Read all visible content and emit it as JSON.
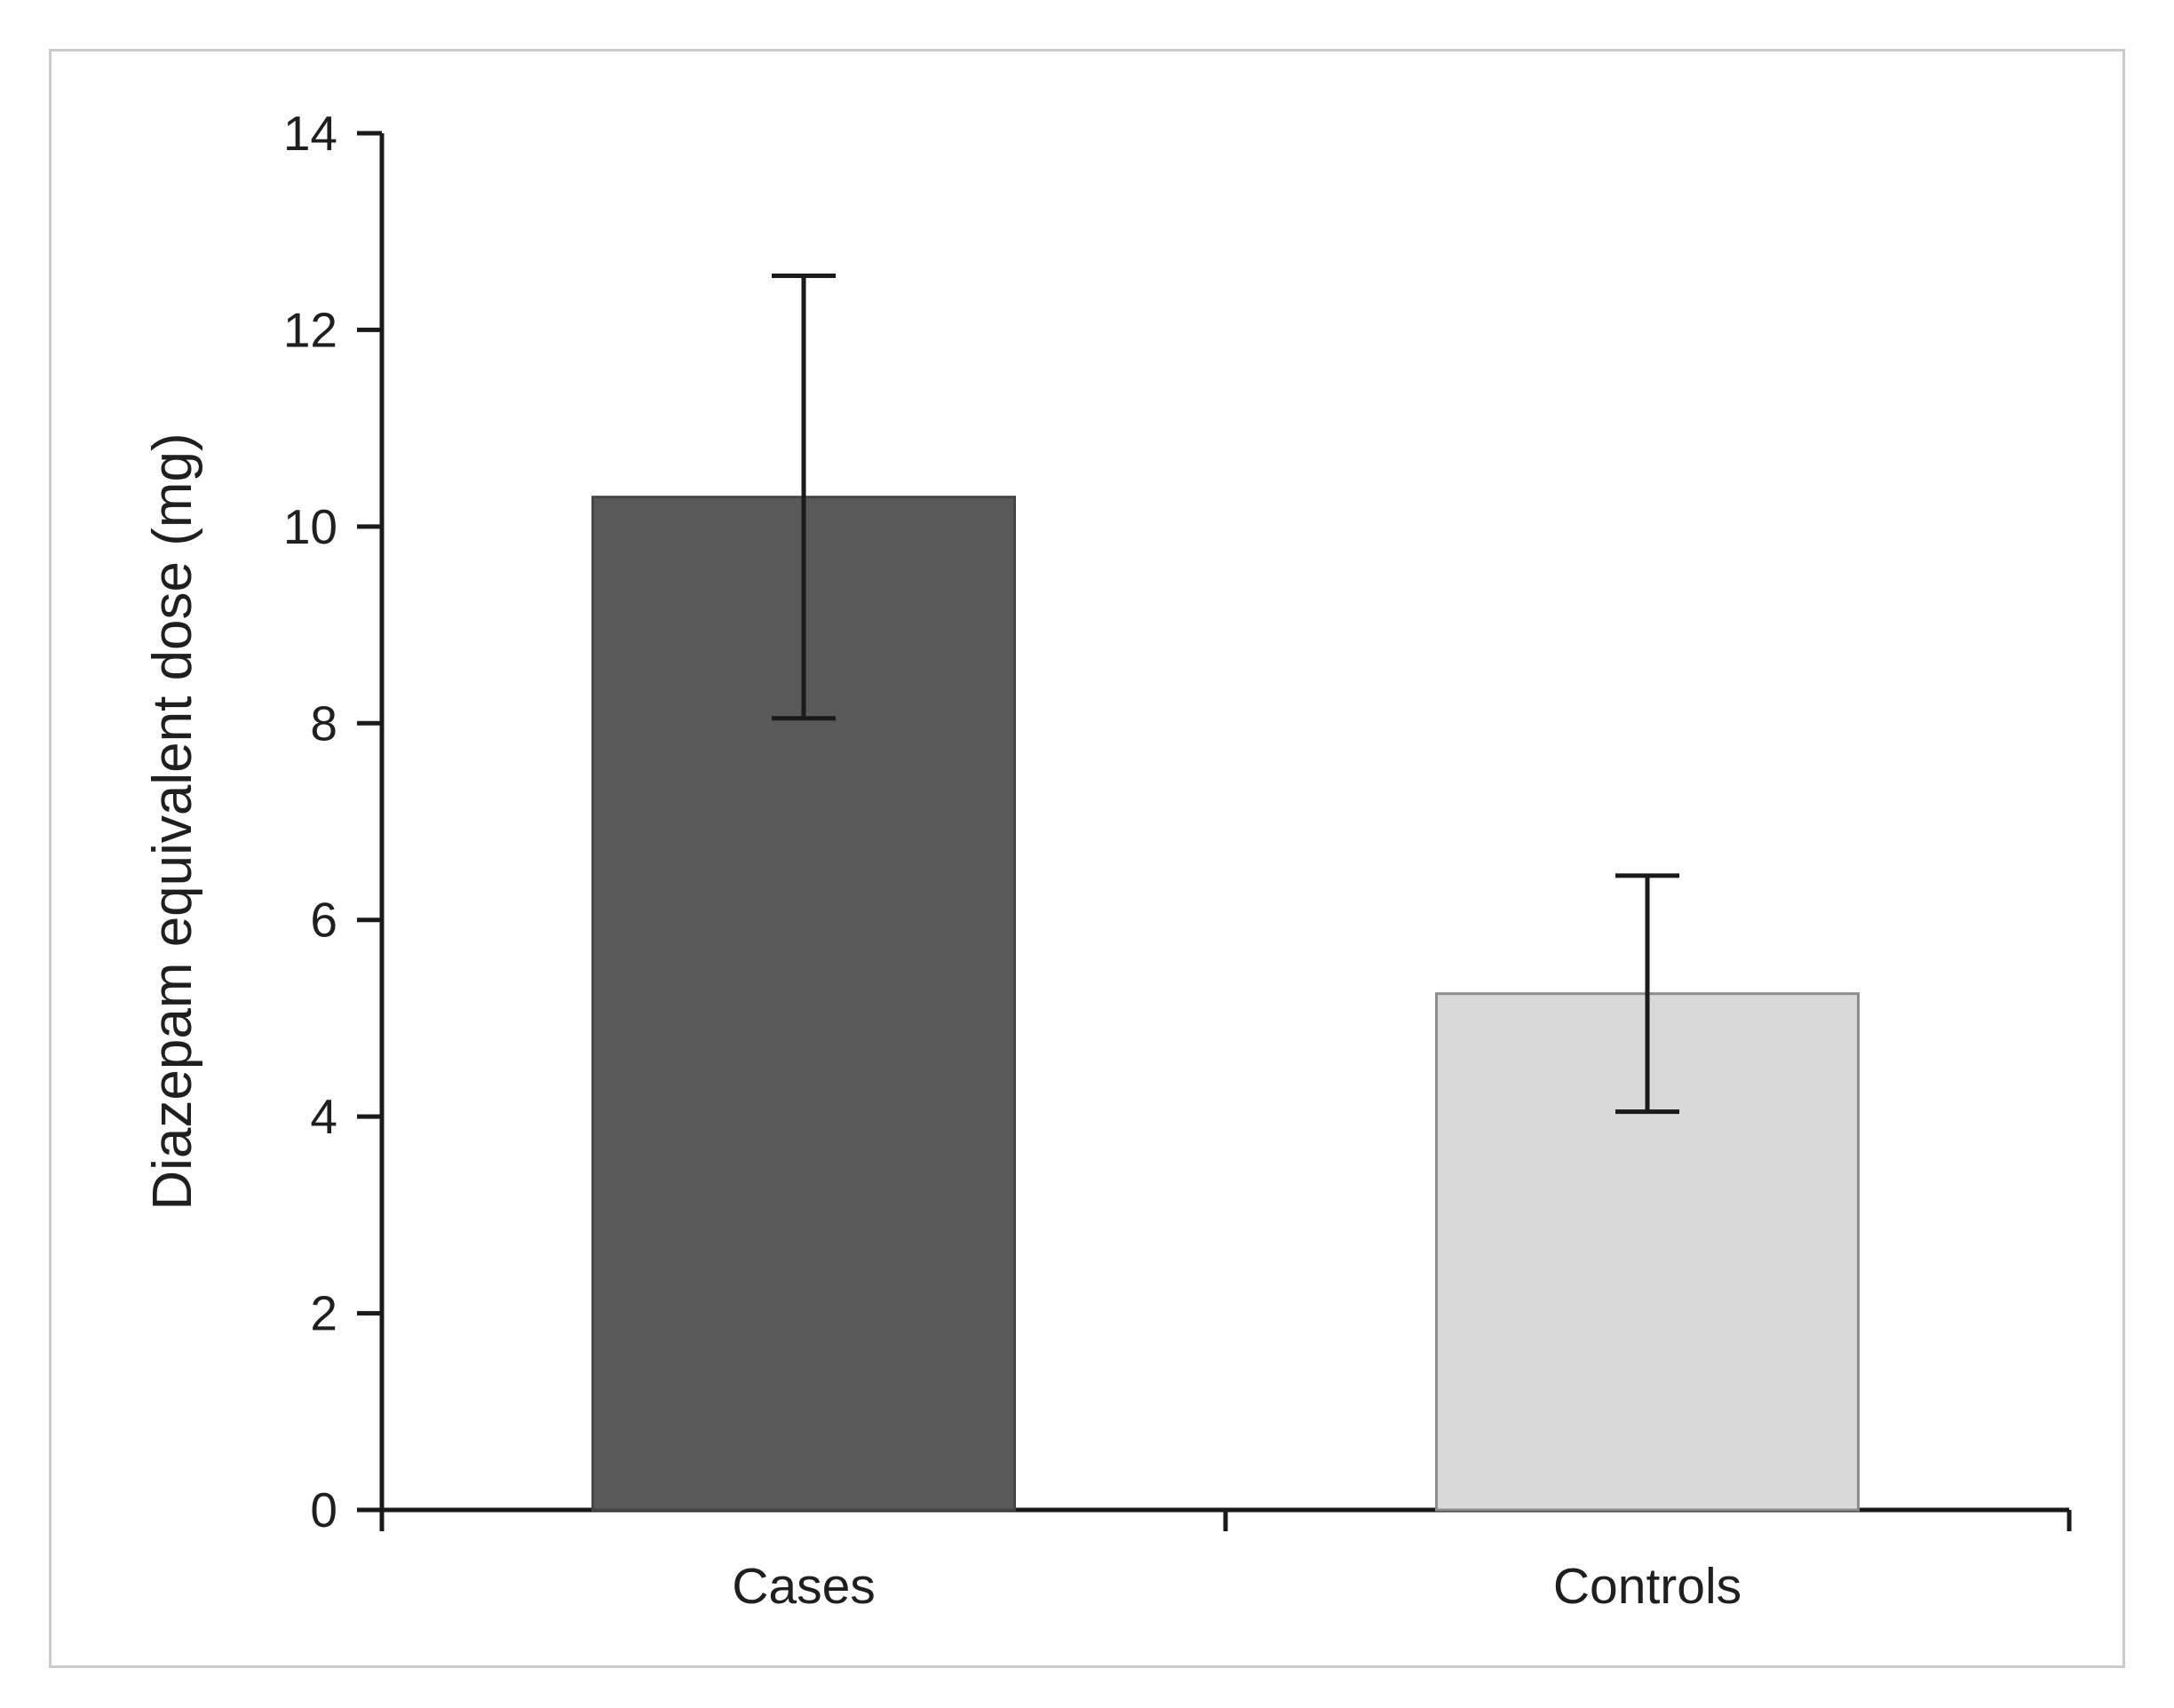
{
  "chart_data": {
    "type": "bar",
    "title": "",
    "xlabel": "",
    "ylabel": "Diazepam equivalent dose (mg)",
    "categories": [
      "Cases",
      "Controls"
    ],
    "values": [
      10.3,
      5.25
    ],
    "errors": [
      2.25,
      1.2
    ],
    "ylim": [
      0,
      14
    ],
    "yticks": [
      0,
      2,
      4,
      6,
      8,
      10,
      12,
      14
    ],
    "grid": false,
    "legend": "none",
    "bar_colors": [
      "#595959",
      "#d9d9d9"
    ],
    "bar_edge_colors": [
      "#454545",
      "#8c8c8c"
    ],
    "axis_color": "#1a1a1a",
    "error_bar_color": "#1a1a1a",
    "text_color": "#1f1f1f"
  }
}
